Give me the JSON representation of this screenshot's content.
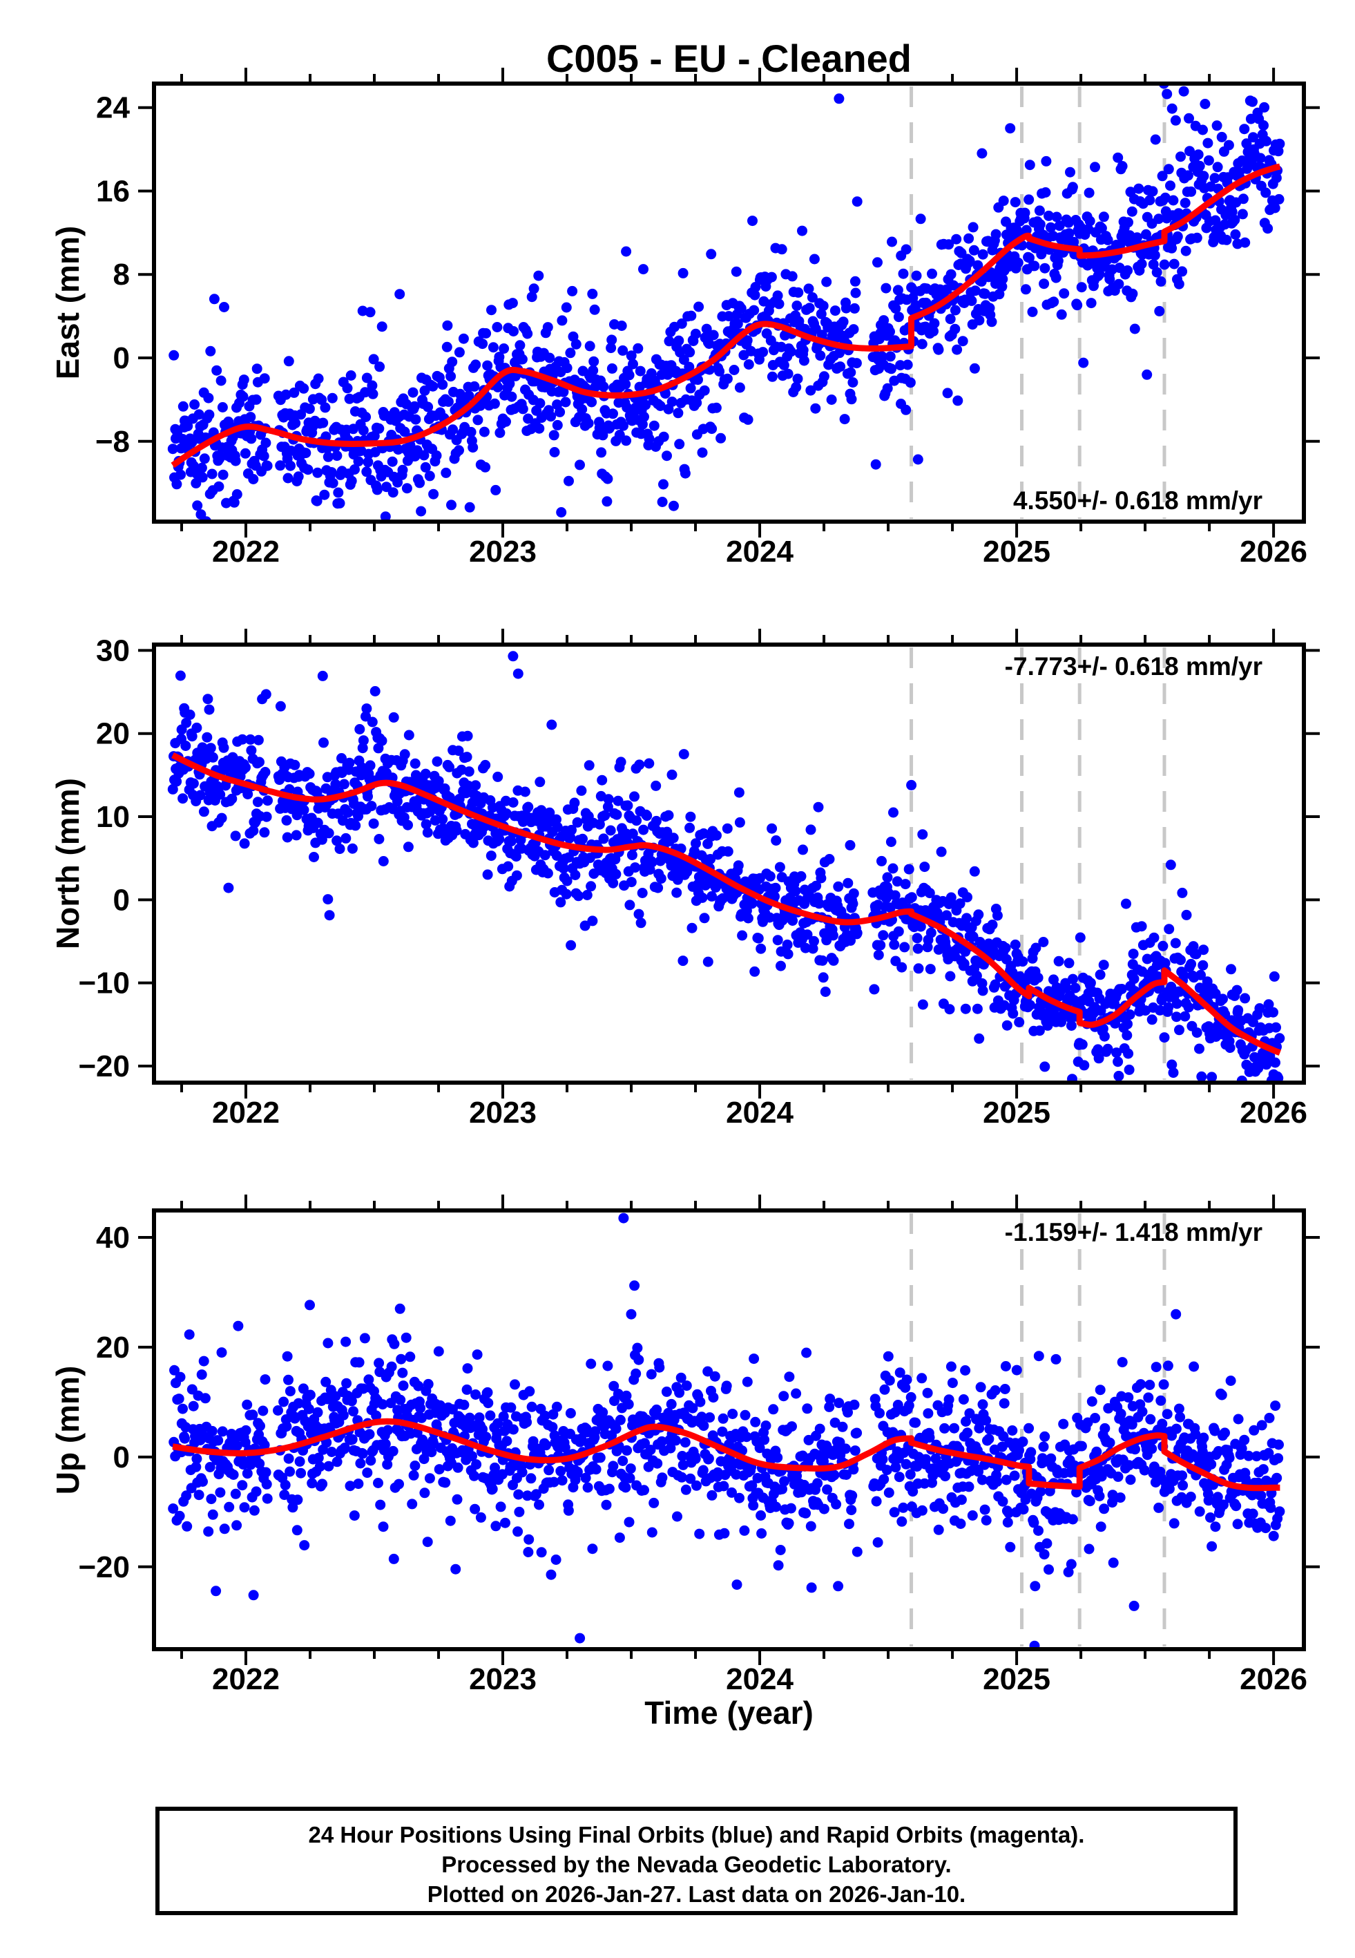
{
  "title": "C005  - EU - Cleaned",
  "time_axis": {
    "label": "Time (year)",
    "t_start": 2021.6425,
    "t_end": 2026.118,
    "year_ticks": [
      2022,
      2023,
      2024,
      2025,
      2026
    ],
    "minor_step": 0.25
  },
  "event_times": [
    2024.59,
    2025.02,
    2025.245,
    2025.575
  ],
  "colors": {
    "dots": "#0000ff",
    "model": "#ff0000",
    "events": "#c8c8c8",
    "frame": "#000000"
  },
  "footer": {
    "line1": "24 Hour Positions Using Final Orbits (blue) and Rapid Orbits (magenta).",
    "line2": "Processed by the Nevada Geodetic Laboratory.",
    "line3": "Plotted on 2026-Jan-27. Last data on 2026-Jan-10."
  },
  "chart_data": [
    {
      "type": "scatter",
      "name": "east",
      "ylabel": "East (mm)",
      "rate_label": "4.550+/- 0.618 mm/yr",
      "ylim": [
        -15.7,
        26.3
      ],
      "yticks": [
        -8,
        0,
        8,
        16,
        24
      ],
      "data_start": 2021.715,
      "data_end": 2026.025,
      "model_segments": [
        [
          [
            2021.715,
            -10.3
          ],
          [
            2021.8,
            -8.9
          ],
          [
            2021.9,
            -7.5
          ],
          [
            2022.0,
            -6.6
          ],
          [
            2022.1,
            -7.0
          ],
          [
            2022.22,
            -7.8
          ],
          [
            2022.35,
            -8.2
          ],
          [
            2022.5,
            -8.2
          ],
          [
            2022.62,
            -7.9
          ],
          [
            2022.75,
            -6.6
          ],
          [
            2022.87,
            -4.6
          ],
          [
            2023.0,
            -1.5
          ],
          [
            2023.08,
            -1.3
          ],
          [
            2023.2,
            -2.2
          ],
          [
            2023.32,
            -3.3
          ],
          [
            2023.45,
            -3.6
          ],
          [
            2023.58,
            -3.2
          ],
          [
            2023.7,
            -2.0
          ],
          [
            2023.82,
            -0.2
          ],
          [
            2023.93,
            2.2
          ],
          [
            2024.0,
            3.2
          ],
          [
            2024.08,
            3.0
          ],
          [
            2024.2,
            1.9
          ],
          [
            2024.33,
            1.1
          ],
          [
            2024.45,
            0.9
          ],
          [
            2024.59,
            1.1
          ]
        ],
        [
          [
            2024.59,
            3.8
          ],
          [
            2024.68,
            4.8
          ],
          [
            2024.78,
            6.5
          ],
          [
            2024.88,
            8.6
          ],
          [
            2024.97,
            10.6
          ],
          [
            2025.03,
            11.6
          ],
          [
            2025.048,
            11.7
          ]
        ],
        [
          [
            2025.048,
            11.45
          ],
          [
            2025.12,
            10.9
          ],
          [
            2025.18,
            10.6
          ],
          [
            2025.245,
            10.4
          ]
        ],
        [
          [
            2025.245,
            9.8
          ],
          [
            2025.32,
            9.9
          ],
          [
            2025.42,
            10.3
          ],
          [
            2025.5,
            10.8
          ],
          [
            2025.575,
            11.2
          ]
        ],
        [
          [
            2025.575,
            12.1
          ],
          [
            2025.65,
            13.1
          ],
          [
            2025.75,
            14.9
          ],
          [
            2025.85,
            16.6
          ],
          [
            2025.93,
            17.6
          ],
          [
            2026.0,
            18.2
          ],
          [
            2026.025,
            18.35
          ]
        ]
      ],
      "scatter": {
        "seed": 101,
        "sigma": 2.6,
        "burst_prob": 0.03,
        "burst_pos_bias": 0.72,
        "n_points": 1500
      },
      "extra_points": [
        [
          2025.585,
          25.3
        ],
        [
          2025.605,
          23.9
        ],
        [
          2022.53,
          3.0
        ],
        [
          2023.48,
          10.2
        ],
        [
          2024.55,
          9.8
        ],
        [
          2024.57,
          10.4
        ]
      ]
    },
    {
      "type": "scatter",
      "name": "north",
      "ylabel": "North (mm)",
      "rate_label": "-7.773+/- 0.618 mm/yr",
      "ylim": [
        -22.0,
        30.7
      ],
      "yticks": [
        -20,
        -10,
        0,
        10,
        20,
        30
      ],
      "data_start": 2021.715,
      "data_end": 2026.025,
      "model_segments": [
        [
          [
            2021.715,
            17.4
          ],
          [
            2021.8,
            16.1
          ],
          [
            2021.9,
            14.8
          ],
          [
            2022.0,
            13.9
          ],
          [
            2022.1,
            13.0
          ],
          [
            2022.2,
            12.3
          ],
          [
            2022.3,
            12.1
          ],
          [
            2022.42,
            12.9
          ],
          [
            2022.52,
            14.0
          ],
          [
            2022.6,
            13.8
          ],
          [
            2022.7,
            12.6
          ],
          [
            2022.82,
            11.0
          ],
          [
            2022.95,
            9.4
          ],
          [
            2023.1,
            7.8
          ],
          [
            2023.25,
            6.5
          ],
          [
            2023.4,
            6.0
          ],
          [
            2023.5,
            6.4
          ],
          [
            2023.57,
            6.5
          ],
          [
            2023.68,
            5.5
          ],
          [
            2023.8,
            3.6
          ],
          [
            2023.92,
            1.5
          ],
          [
            2024.05,
            -0.4
          ],
          [
            2024.2,
            -1.9
          ],
          [
            2024.33,
            -2.7
          ],
          [
            2024.45,
            -2.3
          ],
          [
            2024.55,
            -1.5
          ],
          [
            2024.59,
            -1.4
          ]
        ],
        [
          [
            2024.59,
            -1.7
          ],
          [
            2024.7,
            -3.3
          ],
          [
            2024.8,
            -5.2
          ],
          [
            2024.9,
            -7.5
          ],
          [
            2025.0,
            -10.5
          ],
          [
            2025.048,
            -11.6
          ]
        ],
        [
          [
            2025.048,
            -10.6
          ],
          [
            2025.12,
            -11.9
          ],
          [
            2025.19,
            -12.9
          ],
          [
            2025.245,
            -13.5
          ]
        ],
        [
          [
            2025.245,
            -14.8
          ],
          [
            2025.3,
            -15.0
          ],
          [
            2025.38,
            -13.9
          ],
          [
            2025.46,
            -11.8
          ],
          [
            2025.53,
            -10.2
          ],
          [
            2025.575,
            -9.9
          ]
        ],
        [
          [
            2025.575,
            -8.5
          ],
          [
            2025.65,
            -10.3
          ],
          [
            2025.75,
            -13.1
          ],
          [
            2025.84,
            -15.5
          ],
          [
            2025.93,
            -17.1
          ],
          [
            2026.0,
            -18.1
          ],
          [
            2026.025,
            -18.4
          ]
        ]
      ],
      "scatter": {
        "seed": 202,
        "sigma": 2.7,
        "burst_prob": 0.03,
        "burst_pos_bias": 0.78,
        "n_points": 1500
      },
      "extra_points": [
        [
          2023.04,
          29.3
        ],
        [
          2023.06,
          27.2
        ],
        [
          2022.47,
          23.0
        ],
        [
          2024.52,
          10.5
        ],
        [
          2025.6,
          4.2
        ]
      ]
    },
    {
      "type": "scatter",
      "name": "up",
      "ylabel": "Up (mm)",
      "rate_label": "-1.159+/- 1.418 mm/yr",
      "ylim": [
        -35.0,
        44.9
      ],
      "yticks": [
        -20,
        0,
        20,
        40
      ],
      "data_start": 2021.715,
      "data_end": 2026.025,
      "model_segments": [
        [
          [
            2021.715,
            1.9
          ],
          [
            2021.85,
            1.0
          ],
          [
            2022.0,
            0.7
          ],
          [
            2022.15,
            1.6
          ],
          [
            2022.3,
            3.6
          ],
          [
            2022.45,
            5.8
          ],
          [
            2022.55,
            6.5
          ],
          [
            2022.65,
            5.8
          ],
          [
            2022.8,
            3.6
          ],
          [
            2022.95,
            1.2
          ],
          [
            2023.1,
            -0.4
          ],
          [
            2023.25,
            -0.3
          ],
          [
            2023.4,
            2.0
          ],
          [
            2023.52,
            4.6
          ],
          [
            2023.6,
            5.5
          ],
          [
            2023.72,
            4.2
          ],
          [
            2023.85,
            1.6
          ],
          [
            2024.0,
            -1.2
          ],
          [
            2024.15,
            -2.0
          ],
          [
            2024.3,
            -1.8
          ],
          [
            2024.42,
            0.6
          ],
          [
            2024.52,
            3.0
          ],
          [
            2024.59,
            3.4
          ]
        ],
        [
          [
            2024.59,
            2.6
          ],
          [
            2024.7,
            1.2
          ],
          [
            2024.8,
            0.3
          ],
          [
            2024.9,
            -0.5
          ],
          [
            2025.0,
            -1.5
          ],
          [
            2025.048,
            -1.8
          ]
        ],
        [
          [
            2025.048,
            -4.8
          ],
          [
            2025.12,
            -5.1
          ],
          [
            2025.19,
            -5.3
          ],
          [
            2025.245,
            -5.4
          ]
        ],
        [
          [
            2025.245,
            -2.0
          ],
          [
            2025.32,
            -0.5
          ],
          [
            2025.4,
            1.7
          ],
          [
            2025.48,
            3.3
          ],
          [
            2025.54,
            3.9
          ],
          [
            2025.575,
            3.8
          ]
        ],
        [
          [
            2025.575,
            1.0
          ],
          [
            2025.65,
            -1.1
          ],
          [
            2025.74,
            -3.2
          ],
          [
            2025.82,
            -4.9
          ],
          [
            2025.9,
            -5.6
          ],
          [
            2026.0,
            -5.6
          ],
          [
            2026.025,
            -5.6
          ]
        ]
      ],
      "scatter": {
        "seed": 303,
        "sigma": 5.2,
        "burst_prob": 0.028,
        "burst_pos_bias": 0.5,
        "n_points": 1500
      },
      "extra_points": [
        [
          2023.47,
          43.5
        ],
        [
          2023.3,
          -33.0
        ],
        [
          2021.78,
          22.3
        ],
        [
          2022.6,
          27.0
        ],
        [
          2023.5,
          26.0
        ],
        [
          2025.62,
          26.0
        ]
      ]
    }
  ]
}
